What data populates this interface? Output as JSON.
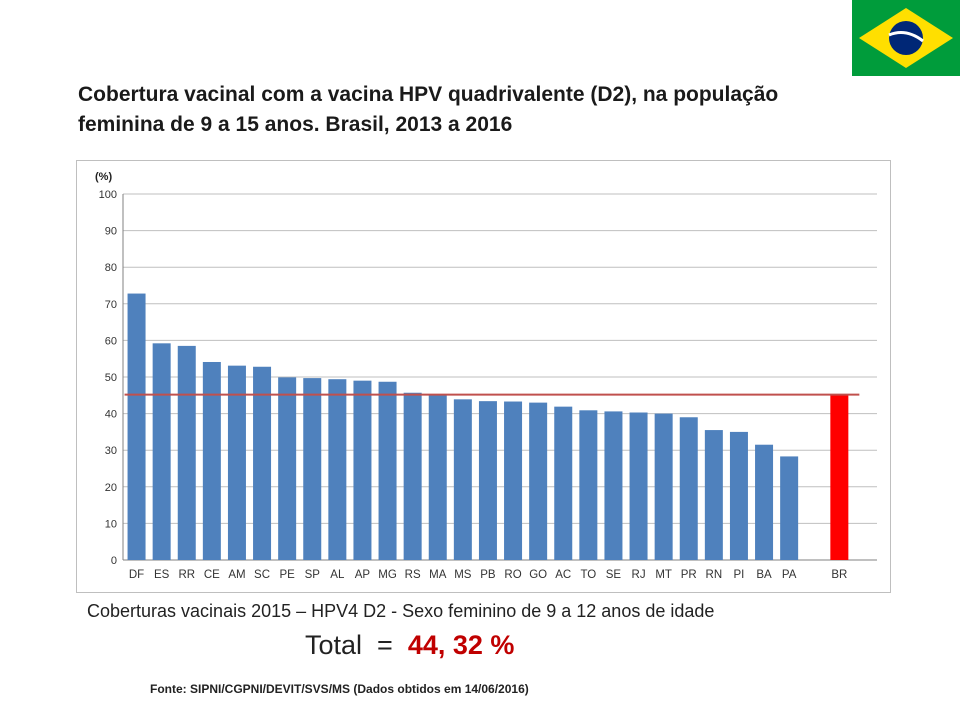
{
  "header": {
    "title_line1": "Cobertura vacinal com a vacina  HPV quadrivalente (D2), na população",
    "title_line2": "feminina de 9 a 15 anos. Brasil, 2013 a 2016"
  },
  "flag": {
    "name": "brazil-flag",
    "colors": {
      "green": "#009c3b",
      "yellow": "#ffdf00",
      "blue": "#002776"
    }
  },
  "chart_data": {
    "type": "bar",
    "unit_label": "(%)",
    "categories": [
      "DF",
      "ES",
      "RR",
      "CE",
      "AM",
      "SC",
      "PE",
      "SP",
      "AL",
      "AP",
      "MG",
      "RS",
      "MA",
      "MS",
      "PB",
      "RO",
      "GO",
      "AC",
      "TO",
      "SE",
      "RJ",
      "MT",
      "PR",
      "RN",
      "PI",
      "BA",
      "PA",
      "BR"
    ],
    "values": [
      72.8,
      59.2,
      58.5,
      54.1,
      53.1,
      52.8,
      49.9,
      49.7,
      49.4,
      49.0,
      48.7,
      45.7,
      45.2,
      43.9,
      43.4,
      43.3,
      43.0,
      41.9,
      40.9,
      40.6,
      40.3,
      40.0,
      39.0,
      35.5,
      35.0,
      31.5,
      28.3,
      45.2
    ],
    "highlight": {
      "category": "BR",
      "color": "#ff0000"
    },
    "bar_color": "#4f81bd",
    "reference_line": {
      "value": 45.2,
      "color": "#c0504d"
    },
    "ylim": [
      0,
      100
    ],
    "yticks": [
      0,
      10,
      20,
      30,
      40,
      50,
      60,
      70,
      80,
      90,
      100
    ],
    "grid": true,
    "legend": "none"
  },
  "footer": {
    "subtitle": "Coberturas vacinais 2015  – HPV4 D2 - Sexo feminino de 9 a 12 anos de idade",
    "total_label": "Total  =  ",
    "total_value": "44, 32 %",
    "source": "Fonte: SIPNI/CGPNI/DEVIT/SVS/MS (Dados obtidos em 14/06/2016)"
  }
}
